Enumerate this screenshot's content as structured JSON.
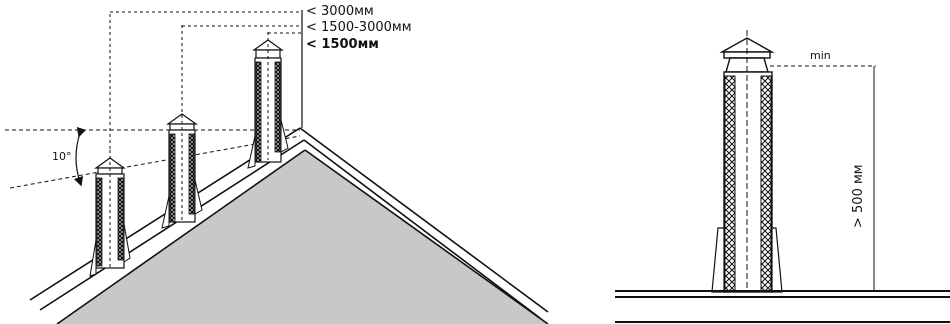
{
  "labels": {
    "dist_3000": "< 3000мм",
    "dist_1500_3000": "< 1500-3000мм",
    "dist_1500": "< 1500мм",
    "angle": "10°",
    "min": "min",
    "height": "> 500 мм"
  },
  "colors": {
    "roof_fill": "#c8c8c8",
    "line": "#111111",
    "background": "#ffffff"
  }
}
